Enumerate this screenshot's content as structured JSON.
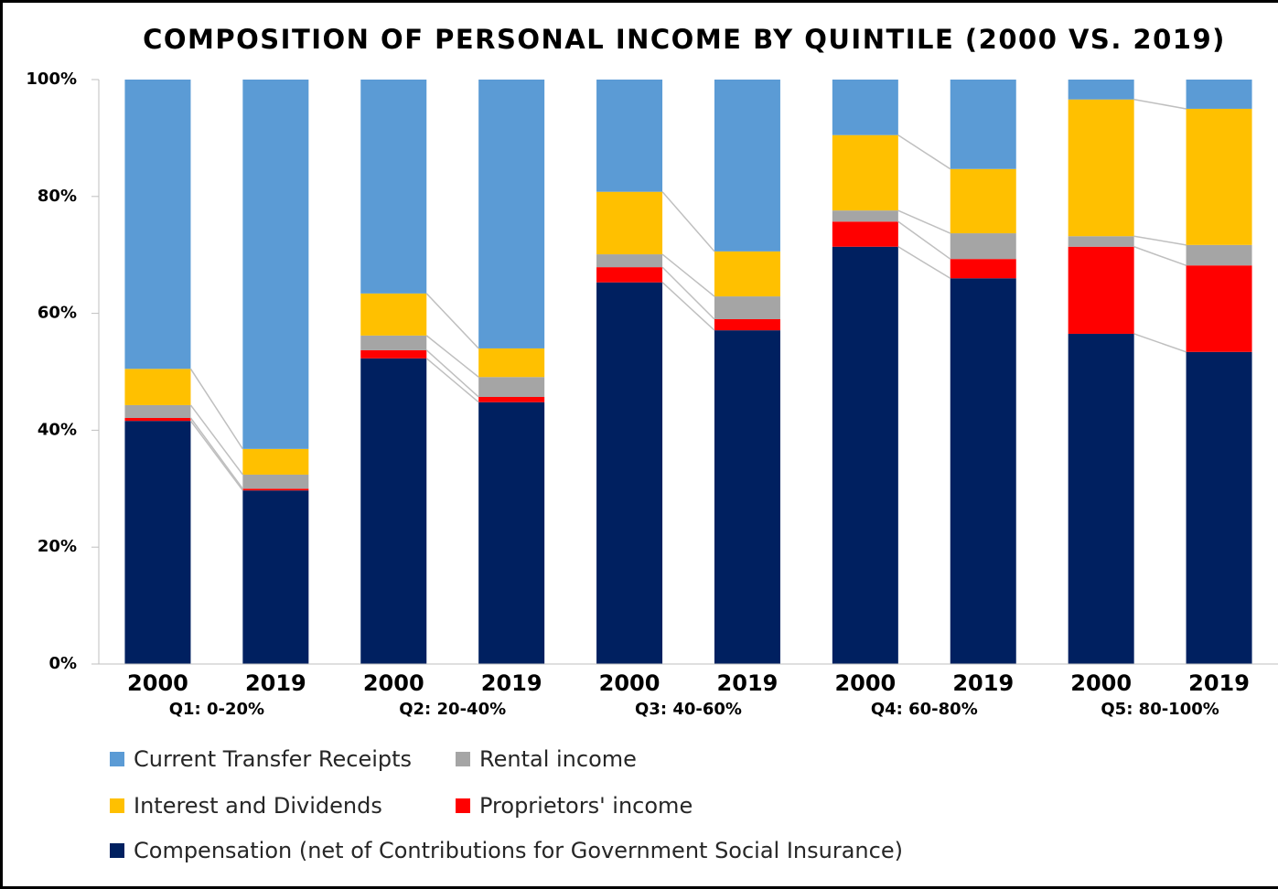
{
  "chart_data": {
    "type": "stacked_bar",
    "title": "COMPOSITION OF PERSONAL INCOME BY QUINTILE (2000 VS. 2019)",
    "categories": [
      "2000",
      "2019",
      "2000",
      "2019",
      "2000",
      "2019",
      "2000",
      "2019",
      "2000",
      "2019"
    ],
    "groups": [
      "Q1: 0-20%",
      "Q2: 20-40%",
      "Q3: 40-60%",
      "Q4: 60-80%",
      "Q5: 80-100%"
    ],
    "series": [
      {
        "name": "Compensation (net of Contributions for Government Social Insurance)",
        "color": "#002060",
        "values": [
          41.6,
          29.7,
          52.3,
          44.8,
          65.3,
          57.1,
          71.4,
          66.0,
          56.5,
          53.4
        ]
      },
      {
        "name": "Proprietors' income",
        "color": "#ff0000",
        "values": [
          0.5,
          0.3,
          1.4,
          0.9,
          2.6,
          1.9,
          4.3,
          3.3,
          14.9,
          14.8
        ]
      },
      {
        "name": "Rental income",
        "color": "#a5a5a5",
        "values": [
          2.2,
          2.4,
          2.5,
          3.4,
          2.2,
          3.9,
          1.9,
          4.4,
          1.8,
          3.5
        ]
      },
      {
        "name": "Interest and Dividends",
        "color": "#ffc000",
        "values": [
          6.2,
          4.4,
          7.2,
          4.9,
          10.7,
          7.7,
          12.9,
          11.0,
          23.4,
          23.3
        ]
      },
      {
        "name": "Current Transfer Receipts",
        "color": "#5b9bd5",
        "values": [
          49.5,
          63.2,
          36.6,
          46.0,
          19.2,
          29.4,
          9.5,
          15.3,
          3.4,
          5.0
        ]
      }
    ],
    "ylim": [
      0,
      100
    ],
    "yticks": [
      {
        "value": 0,
        "label": "0%"
      },
      {
        "value": 20,
        "label": "20%"
      },
      {
        "value": 40,
        "label": "40%"
      },
      {
        "value": 60,
        "label": "60%"
      },
      {
        "value": 80,
        "label": "80%"
      },
      {
        "value": 100,
        "label": "100%"
      }
    ]
  }
}
